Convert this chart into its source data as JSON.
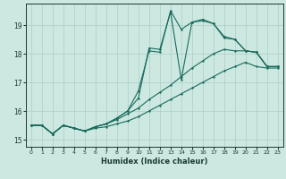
{
  "xlabel": "Humidex (Indice chaleur)",
  "bg_color": "#cce8e0",
  "grid_color": "#aacfc8",
  "line_color": "#1a6b5e",
  "xlim": [
    -0.5,
    23.5
  ],
  "ylim": [
    14.75,
    19.75
  ],
  "xticks": [
    0,
    1,
    2,
    3,
    4,
    5,
    6,
    7,
    8,
    9,
    10,
    11,
    12,
    13,
    14,
    15,
    16,
    17,
    18,
    19,
    20,
    21,
    22,
    23
  ],
  "yticks": [
    15,
    16,
    17,
    18,
    19
  ],
  "line1_x": [
    0,
    1,
    2,
    3,
    4,
    5,
    6,
    7,
    8,
    9,
    10,
    11,
    12,
    13,
    14,
    15,
    16,
    17,
    18,
    19,
    20,
    21,
    22,
    23
  ],
  "line1_y": [
    15.5,
    15.5,
    15.2,
    15.5,
    15.4,
    15.3,
    15.4,
    15.45,
    15.55,
    15.65,
    15.8,
    16.0,
    16.2,
    16.4,
    16.6,
    16.8,
    17.0,
    17.2,
    17.4,
    17.55,
    17.7,
    17.55,
    17.5,
    17.5
  ],
  "line2_x": [
    0,
    1,
    2,
    3,
    4,
    5,
    6,
    7,
    8,
    9,
    10,
    11,
    12,
    13,
    14,
    15,
    16,
    17,
    18,
    19,
    20,
    21,
    22,
    23
  ],
  "line2_y": [
    15.5,
    15.5,
    15.2,
    15.5,
    15.4,
    15.3,
    15.45,
    15.55,
    15.7,
    15.9,
    16.1,
    16.4,
    16.65,
    16.9,
    17.2,
    17.5,
    17.75,
    18.0,
    18.15,
    18.1,
    18.1,
    18.05,
    17.55,
    17.55
  ],
  "line3_x": [
    0,
    1,
    2,
    3,
    4,
    5,
    6,
    7,
    8,
    9,
    10,
    11,
    12,
    13,
    14,
    15,
    16,
    17,
    18,
    19,
    20,
    21,
    22,
    23
  ],
  "line3_y": [
    15.5,
    15.5,
    15.2,
    15.5,
    15.4,
    15.3,
    15.45,
    15.55,
    15.75,
    16.0,
    16.45,
    18.2,
    18.15,
    19.45,
    17.1,
    19.1,
    19.2,
    19.05,
    18.55,
    18.5,
    18.1,
    18.05,
    17.55,
    17.55
  ],
  "line4_x": [
    0,
    1,
    2,
    3,
    4,
    5,
    6,
    7,
    8,
    9,
    10,
    11,
    12,
    13,
    14,
    15,
    16,
    17,
    18,
    19,
    20,
    21,
    22,
    23
  ],
  "line4_y": [
    15.5,
    15.5,
    15.2,
    15.5,
    15.4,
    15.3,
    15.45,
    15.55,
    15.75,
    16.0,
    16.7,
    18.1,
    18.05,
    19.5,
    18.85,
    19.1,
    19.15,
    19.05,
    18.6,
    18.5,
    18.1,
    18.05,
    17.55,
    17.55
  ]
}
